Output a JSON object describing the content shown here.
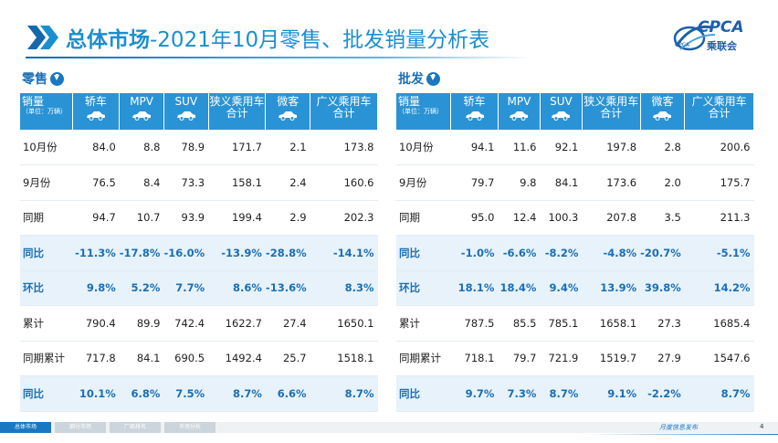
{
  "header": {
    "title_bold": "总体市场",
    "title_rest": "-2021年10月零售、批发销量分析表",
    "logo_text": "CPCA",
    "logo_sub": "乘联会",
    "logo_mini": "CPCA",
    "accent": "#1a8fd0"
  },
  "retail": {
    "label": "零售",
    "icon": "circle-arrow-down-icon",
    "columns": [
      {
        "main": "销量",
        "small": "（单位：万辆）"
      },
      {
        "main": "轿车",
        "car": true
      },
      {
        "main": "MPV",
        "car": true
      },
      {
        "main": "SUV",
        "car": true
      },
      {
        "main": "狭义乘用车",
        "main2": "合计"
      },
      {
        "main": "微客",
        "car": true
      },
      {
        "main": "广义乘用车",
        "main2": "合计"
      }
    ],
    "rows": [
      {
        "label": "10月份",
        "values": [
          "84.0",
          "8.8",
          "78.9",
          "171.7",
          "2.1",
          "173.8"
        ],
        "style": "plain"
      },
      {
        "label": "9月份",
        "values": [
          "76.5",
          "8.4",
          "73.3",
          "158.1",
          "2.4",
          "160.6"
        ],
        "style": "plain"
      },
      {
        "label": "同期",
        "values": [
          "94.7",
          "10.7",
          "93.9",
          "199.4",
          "2.9",
          "202.3"
        ],
        "style": "plain"
      },
      {
        "label": "同比",
        "values": [
          "-11.3%",
          "-17.8%",
          "-16.0%",
          "-13.9%",
          "-28.8%",
          "-14.1%"
        ],
        "style": "pct"
      },
      {
        "label": "环比",
        "values": [
          "9.8%",
          "5.2%",
          "7.7%",
          "8.6%",
          "-13.6%",
          "8.3%"
        ],
        "style": "pct"
      },
      {
        "label": "累计",
        "values": [
          "790.4",
          "89.9",
          "742.4",
          "1622.7",
          "27.4",
          "1650.1"
        ],
        "style": "plain"
      },
      {
        "label": "同期累计",
        "values": [
          "717.8",
          "84.1",
          "690.5",
          "1492.4",
          "25.7",
          "1518.1"
        ],
        "style": "plain"
      },
      {
        "label": "同比",
        "values": [
          "10.1%",
          "6.8%",
          "7.5%",
          "8.7%",
          "6.6%",
          "8.7%"
        ],
        "style": "pct"
      }
    ]
  },
  "wholesale": {
    "label": "批发",
    "icon": "circle-arrow-down-icon",
    "columns": [
      {
        "main": "销量",
        "small": "（单位：万辆）"
      },
      {
        "main": "轿车",
        "car": true
      },
      {
        "main": "MPV",
        "car": true
      },
      {
        "main": "SUV",
        "car": true
      },
      {
        "main": "狭义乘用车",
        "main2": "合计"
      },
      {
        "main": "微客",
        "car": true
      },
      {
        "main": "广义乘用车",
        "main2": "合计"
      }
    ],
    "rows": [
      {
        "label": "10月份",
        "values": [
          "94.1",
          "11.6",
          "92.1",
          "197.8",
          "2.8",
          "200.6"
        ],
        "style": "plain"
      },
      {
        "label": "9月份",
        "values": [
          "79.7",
          "9.8",
          "84.1",
          "173.6",
          "2.0",
          "175.7"
        ],
        "style": "plain"
      },
      {
        "label": "同期",
        "values": [
          "95.0",
          "12.4",
          "100.3",
          "207.8",
          "3.5",
          "211.3"
        ],
        "style": "plain"
      },
      {
        "label": "同比",
        "values": [
          "-1.0%",
          "-6.6%",
          "-8.2%",
          "-4.8%",
          "-20.7%",
          "-5.1%"
        ],
        "style": "pct"
      },
      {
        "label": "环比",
        "values": [
          "18.1%",
          "18.4%",
          "9.4%",
          "13.9%",
          "39.8%",
          "14.2%"
        ],
        "style": "pct"
      },
      {
        "label": "累计",
        "values": [
          "787.5",
          "85.5",
          "785.1",
          "1658.1",
          "27.3",
          "1685.4"
        ],
        "style": "plain"
      },
      {
        "label": "同期累计",
        "values": [
          "718.1",
          "79.7",
          "721.9",
          "1519.7",
          "27.9",
          "1547.6"
        ],
        "style": "plain"
      },
      {
        "label": "同比",
        "values": [
          "9.7%",
          "7.3%",
          "8.7%",
          "9.1%",
          "-2.2%",
          "8.7%"
        ],
        "style": "pct"
      }
    ]
  },
  "footer": {
    "tabs": [
      {
        "label": "总体市场",
        "active": true
      },
      {
        "label": "细分市场",
        "active": false
      },
      {
        "label": "厂商排名",
        "active": false
      },
      {
        "label": "市场分析",
        "active": false
      }
    ],
    "publish_text": "月度信息发布",
    "page_number": "4"
  }
}
